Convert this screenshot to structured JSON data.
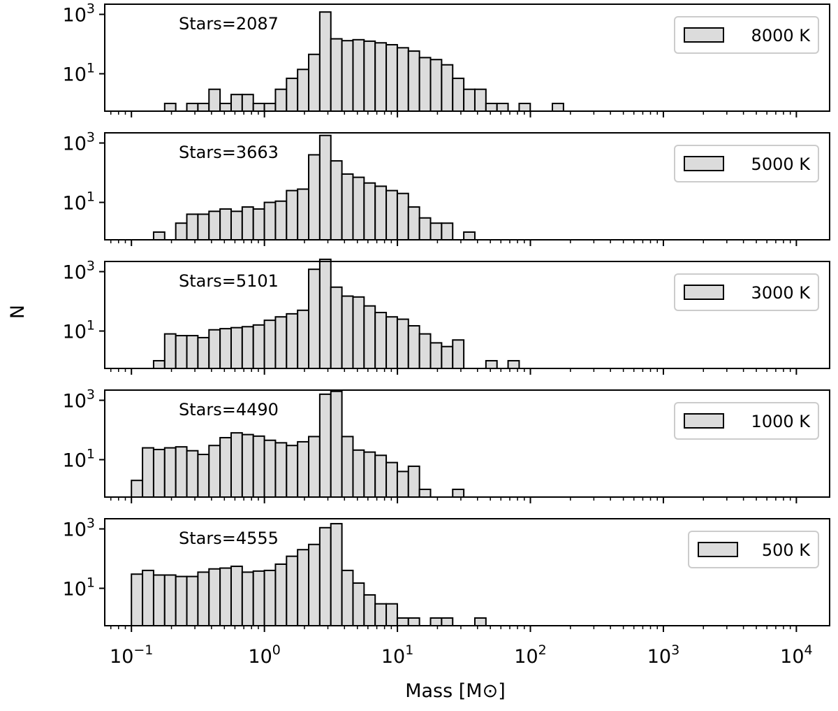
{
  "chart_data": {
    "type": "bar",
    "ylabel": "N",
    "xlabel": "Mass [M⊙]",
    "xscale": "log",
    "yscale": "log",
    "xlim": [
      0.063,
      17783
    ],
    "ylim": [
      0.55,
      2200
    ],
    "bin_width_dex": 0.0833,
    "first_bin_left": 0.1,
    "x_ticks": [
      {
        "value": 0.1,
        "base": "10",
        "exp": "−1"
      },
      {
        "value": 1,
        "base": "10",
        "exp": "0"
      },
      {
        "value": 10,
        "base": "10",
        "exp": "1"
      },
      {
        "value": 100,
        "base": "10",
        "exp": "2"
      },
      {
        "value": 1000,
        "base": "10",
        "exp": "3"
      },
      {
        "value": 10000,
        "base": "10",
        "exp": "4"
      }
    ],
    "y_ticks": [
      {
        "value": 10,
        "base": "10",
        "exp": "1"
      },
      {
        "value": 1000,
        "base": "10",
        "exp": "3"
      }
    ],
    "panels": [
      {
        "name": "8000 K",
        "legend": "8000 K",
        "annotation": "Stars=2087",
        "counts": [
          0,
          0,
          0,
          1,
          0,
          1,
          1,
          3,
          1,
          2,
          2,
          1,
          1,
          3,
          7,
          14,
          45,
          1200,
          150,
          130,
          140,
          125,
          110,
          95,
          75,
          58,
          35,
          30,
          20,
          7,
          3,
          3,
          1,
          1,
          0,
          1,
          0,
          0,
          1,
          0,
          0,
          0,
          0,
          0
        ]
      },
      {
        "name": "5000 K",
        "legend": "5000 K",
        "annotation": "Stars=3663",
        "counts": [
          0,
          0,
          1,
          0,
          2,
          4,
          4,
          5,
          6,
          5,
          7,
          6,
          10,
          11,
          25,
          28,
          400,
          1800,
          250,
          90,
          70,
          45,
          35,
          25,
          20,
          7,
          3,
          2,
          2,
          0,
          1,
          0,
          0,
          0,
          0,
          0,
          0,
          0,
          0,
          0,
          0,
          0,
          0,
          0
        ]
      },
      {
        "name": "3000 K",
        "legend": "3000 K",
        "annotation": "Stars=5101",
        "counts": [
          0,
          0,
          1,
          8,
          7,
          7,
          6,
          11,
          12,
          13,
          14,
          16,
          23,
          30,
          38,
          50,
          1200,
          2600,
          300,
          150,
          140,
          70,
          42,
          30,
          25,
          15,
          8,
          4,
          3,
          5,
          0,
          0,
          1,
          0,
          1,
          0,
          0,
          0,
          0,
          0,
          0,
          0,
          0,
          0
        ]
      },
      {
        "name": "1000 K",
        "legend": "1000 K",
        "annotation": "Stars=4490",
        "counts": [
          2,
          25,
          22,
          25,
          27,
          20,
          15,
          30,
          55,
          80,
          70,
          62,
          45,
          37,
          30,
          40,
          60,
          1600,
          2000,
          60,
          21,
          18,
          14,
          8,
          4,
          6,
          1,
          0,
          0,
          1,
          0,
          0,
          0,
          0,
          0,
          0,
          0,
          0,
          0,
          0,
          0,
          0,
          0,
          0
        ]
      },
      {
        "name": "500 K",
        "legend": "500 K",
        "annotation": "Stars=4555",
        "counts": [
          30,
          40,
          28,
          28,
          25,
          25,
          35,
          45,
          48,
          55,
          35,
          38,
          40,
          65,
          120,
          200,
          300,
          1100,
          1500,
          40,
          15,
          6,
          3,
          3,
          1,
          1,
          0,
          1,
          1,
          0,
          0,
          1,
          0,
          0,
          0,
          0,
          0,
          0,
          0,
          0,
          0,
          0,
          0,
          0
        ]
      }
    ]
  },
  "colors": {
    "bar_fill": "#dcdcdc",
    "stroke": "#000000",
    "legend_border": "#cccccc"
  }
}
